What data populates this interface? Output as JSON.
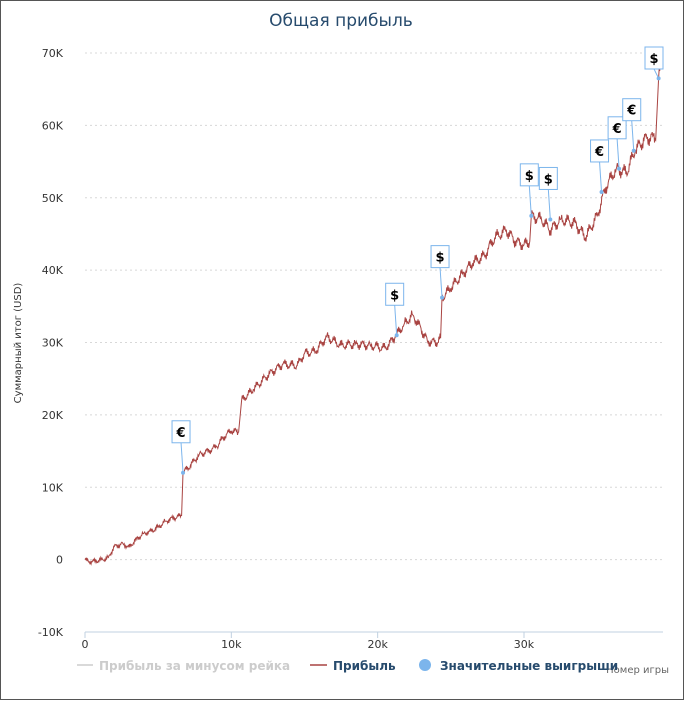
{
  "chart_data": {
    "type": "line",
    "title": "Общая прибыль",
    "xlabel": "Номер игры",
    "ylabel": "Суммарный итог (USD)",
    "xlim": [
      0,
      39500
    ],
    "ylim": [
      -10000,
      70000
    ],
    "x_ticks": [
      {
        "value": 0,
        "label": "0"
      },
      {
        "value": 10000,
        "label": "10k"
      },
      {
        "value": 20000,
        "label": "20k"
      },
      {
        "value": 30000,
        "label": "30k"
      }
    ],
    "y_ticks": [
      {
        "value": -10000,
        "label": "-10K"
      },
      {
        "value": 0,
        "label": "0"
      },
      {
        "value": 10000,
        "label": "10K"
      },
      {
        "value": 20000,
        "label": "20K"
      },
      {
        "value": 30000,
        "label": "30K"
      },
      {
        "value": 40000,
        "label": "40K"
      },
      {
        "value": 50000,
        "label": "50K"
      },
      {
        "value": 60000,
        "label": "60K"
      },
      {
        "value": 70000,
        "label": "70K"
      }
    ],
    "grid": true,
    "series": [
      {
        "name": "Прибыль за минусом рейка",
        "color": "#cccccc",
        "visible": false,
        "points": []
      },
      {
        "name": "Прибыль",
        "color": "#a94442",
        "visible": true,
        "points": [
          [
            0,
            0
          ],
          [
            300,
            -300
          ],
          [
            800,
            -200
          ],
          [
            1200,
            0
          ],
          [
            1600,
            300
          ],
          [
            2000,
            1800
          ],
          [
            2600,
            2200
          ],
          [
            3000,
            1700
          ],
          [
            3500,
            2800
          ],
          [
            4000,
            3600
          ],
          [
            4500,
            3900
          ],
          [
            5000,
            4500
          ],
          [
            5500,
            5300
          ],
          [
            6000,
            5700
          ],
          [
            6600,
            6100
          ],
          [
            6700,
            12000
          ],
          [
            7200,
            13000
          ],
          [
            7800,
            14500
          ],
          [
            8400,
            15000
          ],
          [
            9000,
            15600
          ],
          [
            9500,
            17000
          ],
          [
            10000,
            17800
          ],
          [
            10500,
            17600
          ],
          [
            10700,
            22000
          ],
          [
            11500,
            23500
          ],
          [
            12500,
            25500
          ],
          [
            13500,
            27000
          ],
          [
            14500,
            26800
          ],
          [
            15000,
            28500
          ],
          [
            15800,
            28800
          ],
          [
            16500,
            30800
          ],
          [
            17500,
            29600
          ],
          [
            18500,
            29800
          ],
          [
            19500,
            29600
          ],
          [
            20500,
            29200
          ],
          [
            21200,
            30800
          ],
          [
            21800,
            32500
          ],
          [
            22400,
            33800
          ],
          [
            22800,
            32500
          ],
          [
            23400,
            30200
          ],
          [
            24000,
            30000
          ],
          [
            24300,
            30600
          ],
          [
            24400,
            36200
          ],
          [
            25000,
            37500
          ],
          [
            25800,
            39500
          ],
          [
            26500,
            41000
          ],
          [
            27300,
            42000
          ],
          [
            28000,
            44500
          ],
          [
            28800,
            45500
          ],
          [
            29400,
            44000
          ],
          [
            30000,
            43500
          ],
          [
            30400,
            44000
          ],
          [
            30500,
            47500
          ],
          [
            31200,
            47000
          ],
          [
            31800,
            45500
          ],
          [
            32500,
            47000
          ],
          [
            33500,
            46500
          ],
          [
            34200,
            44500
          ],
          [
            35000,
            47500
          ],
          [
            35600,
            51500
          ],
          [
            36300,
            54000
          ],
          [
            37000,
            53500
          ],
          [
            37600,
            56500
          ],
          [
            38200,
            58000
          ],
          [
            38800,
            58500
          ],
          [
            39000,
            58000
          ],
          [
            39200,
            66500
          ],
          [
            39500,
            69500
          ]
        ]
      },
      {
        "name": "Значительные выигрыши",
        "color": "#7cb5ec",
        "visible": true,
        "points": []
      }
    ],
    "annotations": [
      {
        "x": 6700,
        "y": 12000,
        "symbol": "€"
      },
      {
        "x": 21300,
        "y": 31000,
        "symbol": "$"
      },
      {
        "x": 24400,
        "y": 36200,
        "symbol": "$"
      },
      {
        "x": 30500,
        "y": 47500,
        "symbol": "$"
      },
      {
        "x": 31800,
        "y": 47000,
        "symbol": "$"
      },
      {
        "x": 35300,
        "y": 50800,
        "symbol": "€"
      },
      {
        "x": 36500,
        "y": 54000,
        "symbol": "€"
      },
      {
        "x": 37500,
        "y": 56500,
        "symbol": "€"
      },
      {
        "x": 39200,
        "y": 66500,
        "symbol": "$"
      }
    ]
  }
}
